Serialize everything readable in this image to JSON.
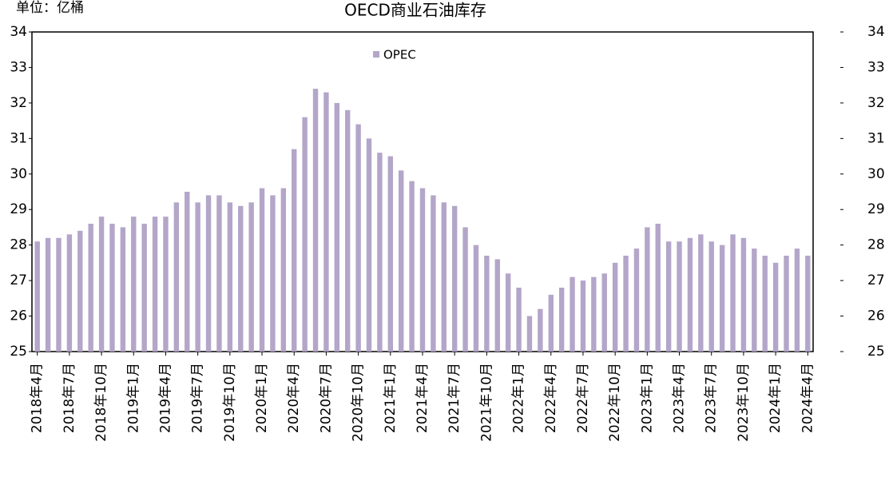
{
  "chart_data": {
    "type": "bar",
    "title": "OECD商业石油库存",
    "unit": "单位：亿桶",
    "legend": "top",
    "series": [
      {
        "name": "OPEC",
        "color": "#b3a6c9",
        "values": [
          28.1,
          28.2,
          28.2,
          28.3,
          28.4,
          28.6,
          28.8,
          28.6,
          28.5,
          28.8,
          28.6,
          28.8,
          28.8,
          29.2,
          29.5,
          29.2,
          29.4,
          29.4,
          29.2,
          29.1,
          29.2,
          29.6,
          29.4,
          29.6,
          30.7,
          31.6,
          32.4,
          32.3,
          32.0,
          31.8,
          31.4,
          31.0,
          30.6,
          30.5,
          30.1,
          29.8,
          29.6,
          29.4,
          29.2,
          29.1,
          28.5,
          28.0,
          27.7,
          27.6,
          27.2,
          26.8,
          26.0,
          26.2,
          26.6,
          26.8,
          27.1,
          27.0,
          27.1,
          27.2,
          27.5,
          27.7,
          27.9,
          28.5,
          28.6,
          28.1,
          28.1,
          28.2,
          28.3,
          28.1,
          28.0,
          28.3,
          28.2,
          27.9,
          27.7,
          27.5,
          27.7,
          27.9,
          27.7
        ]
      }
    ],
    "categories": [
      "2018年4月",
      null,
      null,
      "2018年7月",
      null,
      null,
      "2018年10月",
      null,
      null,
      "2019年1月",
      null,
      null,
      "2019年4月",
      null,
      null,
      "2019年7月",
      null,
      null,
      "2019年10月",
      null,
      null,
      "2020年1月",
      null,
      null,
      "2020年4月",
      null,
      null,
      "2020年7月",
      null,
      null,
      "2020年10月",
      null,
      null,
      "2021年1月",
      null,
      null,
      "2021年4月",
      null,
      null,
      "2021年7月",
      null,
      null,
      "2021年10月",
      null,
      null,
      "2022年1月",
      null,
      null,
      "2022年4月",
      null,
      null,
      "2022年7月",
      null,
      null,
      "2022年10月",
      null,
      null,
      "2023年1月",
      null,
      null,
      "2023年4月",
      null,
      null,
      "2023年7月",
      null,
      null,
      "2023年10月",
      null,
      null,
      "2024年1月",
      null,
      null,
      "2024年4月"
    ],
    "ylim": [
      25,
      34
    ],
    "yticks": [
      25,
      26,
      27,
      28,
      29,
      30,
      31,
      32,
      33,
      34
    ],
    "y2lim": [
      25,
      34
    ],
    "y2ticks": [
      25,
      26,
      27,
      28,
      29,
      30,
      31,
      32,
      33,
      34
    ]
  }
}
